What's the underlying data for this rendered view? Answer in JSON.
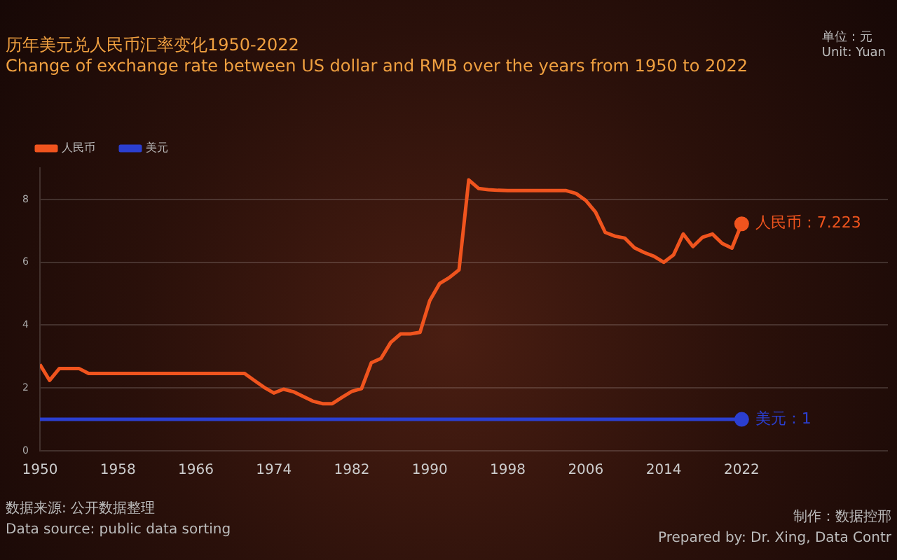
{
  "chart_data": {
    "type": "line",
    "title": "历年美元兑人民币汇率变化1950-2022",
    "subtitle": "Change of exchange rate between US dollar and RMB over the years from 1950 to 2022",
    "x": [
      1950,
      1951,
      1952,
      1953,
      1954,
      1955,
      1956,
      1957,
      1958,
      1959,
      1960,
      1961,
      1962,
      1963,
      1964,
      1965,
      1966,
      1967,
      1968,
      1969,
      1970,
      1971,
      1972,
      1973,
      1974,
      1975,
      1976,
      1977,
      1978,
      1979,
      1980,
      1981,
      1982,
      1983,
      1984,
      1985,
      1986,
      1987,
      1988,
      1989,
      1990,
      1991,
      1992,
      1993,
      1994,
      1995,
      1996,
      1997,
      1998,
      1999,
      2000,
      2001,
      2002,
      2003,
      2004,
      2005,
      2006,
      2007,
      2008,
      2009,
      2010,
      2011,
      2012,
      2013,
      2014,
      2015,
      2016,
      2017,
      2018,
      2019,
      2020,
      2021,
      2022
    ],
    "series": [
      {
        "name": "人民币",
        "color": "#f0541e",
        "values": [
          2.75,
          2.24,
          2.62,
          2.62,
          2.62,
          2.46,
          2.46,
          2.46,
          2.46,
          2.46,
          2.46,
          2.46,
          2.46,
          2.46,
          2.46,
          2.46,
          2.46,
          2.46,
          2.46,
          2.46,
          2.46,
          2.46,
          2.24,
          2.02,
          1.84,
          1.96,
          1.88,
          1.73,
          1.58,
          1.5,
          1.5,
          1.7,
          1.89,
          1.98,
          2.8,
          2.94,
          3.45,
          3.72,
          3.72,
          3.77,
          4.78,
          5.32,
          5.51,
          5.76,
          8.62,
          8.35,
          8.31,
          8.29,
          8.28,
          8.28,
          8.28,
          8.28,
          8.28,
          8.28,
          8.28,
          8.19,
          7.97,
          7.6,
          6.95,
          6.83,
          6.77,
          6.46,
          6.31,
          6.19,
          6.0,
          6.23,
          6.9,
          6.5,
          6.8,
          6.9,
          6.6,
          6.45,
          7.223
        ]
      },
      {
        "name": "美元",
        "color": "#2b3fd0",
        "values": [
          1,
          1,
          1,
          1,
          1,
          1,
          1,
          1,
          1,
          1,
          1,
          1,
          1,
          1,
          1,
          1,
          1,
          1,
          1,
          1,
          1,
          1,
          1,
          1,
          1,
          1,
          1,
          1,
          1,
          1,
          1,
          1,
          1,
          1,
          1,
          1,
          1,
          1,
          1,
          1,
          1,
          1,
          1,
          1,
          1,
          1,
          1,
          1,
          1,
          1,
          1,
          1,
          1,
          1,
          1,
          1,
          1,
          1,
          1,
          1,
          1,
          1,
          1,
          1,
          1,
          1,
          1,
          1,
          1,
          1,
          1,
          1,
          1
        ]
      }
    ],
    "xlim": [
      1950,
      2037
    ],
    "xticks": [
      1950,
      1958,
      1966,
      1974,
      1982,
      1990,
      1998,
      2006,
      2014,
      2022
    ],
    "ylim": [
      0,
      9
    ],
    "yticks": [
      0,
      2,
      4,
      6,
      8
    ],
    "grid": "y",
    "legend": "top left",
    "marker": "none",
    "annotations": [
      {
        "text": "人民币 : 7.223",
        "x": 2022,
        "y": 7.223
      },
      {
        "text": "美元 : 1",
        "x": 2022,
        "y": 1
      },
      "单位：元\nUnit: Yuan",
      "数据来源: 公开数据整理\nData source: public data sorting",
      "制作：数据控邢\nPrepared by: Dr. Xing, Data Contr"
    ]
  }
}
